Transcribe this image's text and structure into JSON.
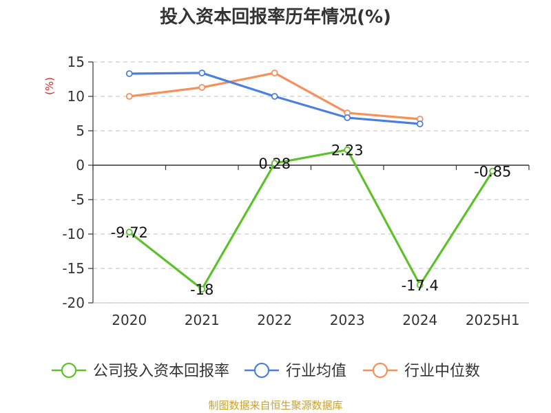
{
  "title": "投入资本回报率历年情况(%)",
  "footer": "制图数据来自恒生聚源数据库",
  "chart_data": {
    "type": "line",
    "title": "投入资本回报率历年情况(%)",
    "ylabel": "(%)",
    "ylabel_color": "#d42a2a",
    "categories": [
      "2020",
      "2021",
      "2022",
      "2023",
      "2024",
      "2025H1"
    ],
    "ylim": [
      -20,
      15
    ],
    "yticks": [
      15,
      10,
      5,
      0,
      -5,
      -10,
      -15,
      -20
    ],
    "grid": "horizontal dashed",
    "legend_position": "bottom",
    "series": [
      {
        "name": "公司投入资本回报率",
        "color": "#5cc12a",
        "values": [
          -9.72,
          -18,
          0.28,
          2.23,
          -17.4,
          -0.85
        ],
        "labels": [
          "-9.72",
          "-18",
          "0.28",
          "2.23",
          "-17.4",
          "-0.85"
        ],
        "show_labels": true
      },
      {
        "name": "行业均值",
        "color": "#4a7fe0",
        "values": [
          13.3,
          13.4,
          10.0,
          6.9,
          6.0,
          null
        ],
        "show_labels": false
      },
      {
        "name": "行业中位数",
        "color": "#f5905a",
        "values": [
          10.0,
          11.3,
          13.4,
          7.6,
          6.7,
          null
        ],
        "show_labels": false
      }
    ]
  }
}
